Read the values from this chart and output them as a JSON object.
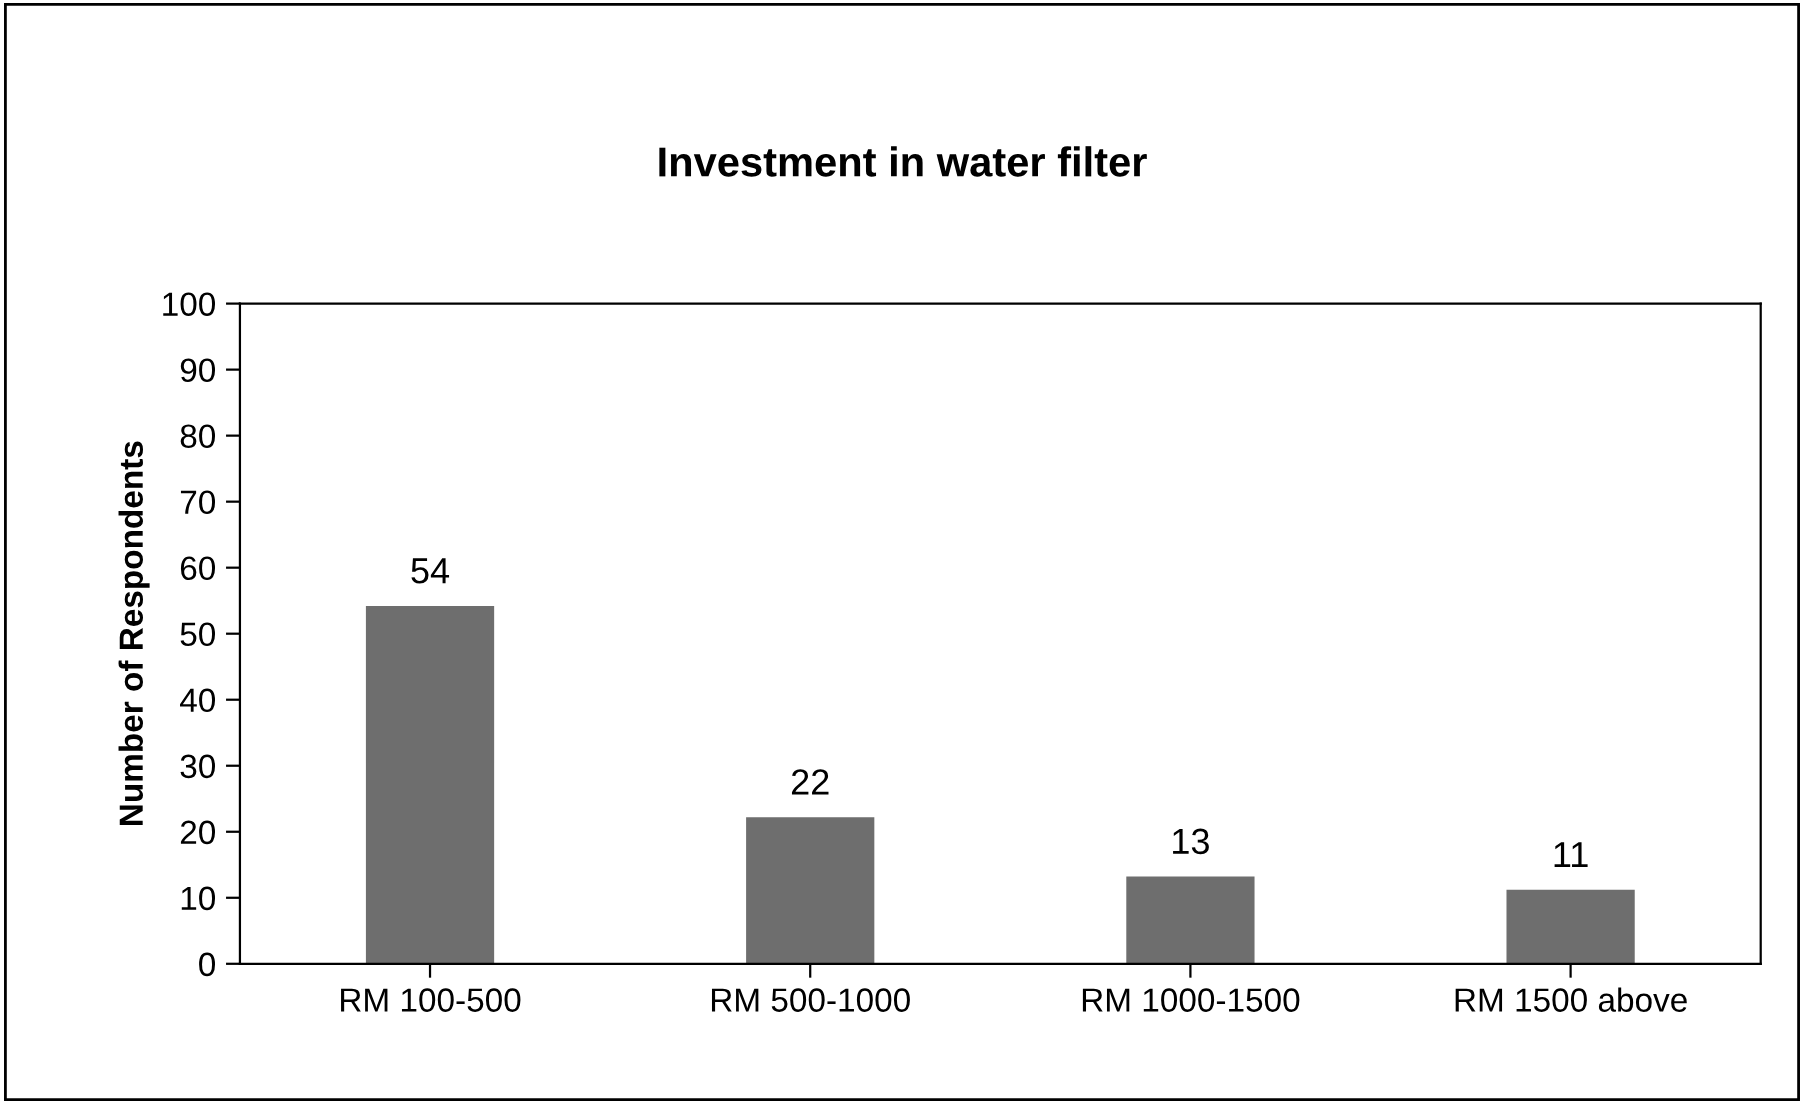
{
  "chart_data": {
    "type": "bar",
    "title": "Investment in water filter",
    "ylabel": "Number of Respondents",
    "categories": [
      "RM 100-500",
      "RM 500-1000",
      "RM 1000-1500",
      "RM 1500 above"
    ],
    "values": [
      54,
      22,
      13,
      11
    ],
    "color": "#6e6e6e",
    "ylim": [
      0,
      100
    ],
    "yticks": [
      0,
      10,
      20,
      30,
      40,
      50,
      60,
      70,
      80,
      90,
      100
    ],
    "grid": false,
    "data_labels": true,
    "legend": false
  }
}
